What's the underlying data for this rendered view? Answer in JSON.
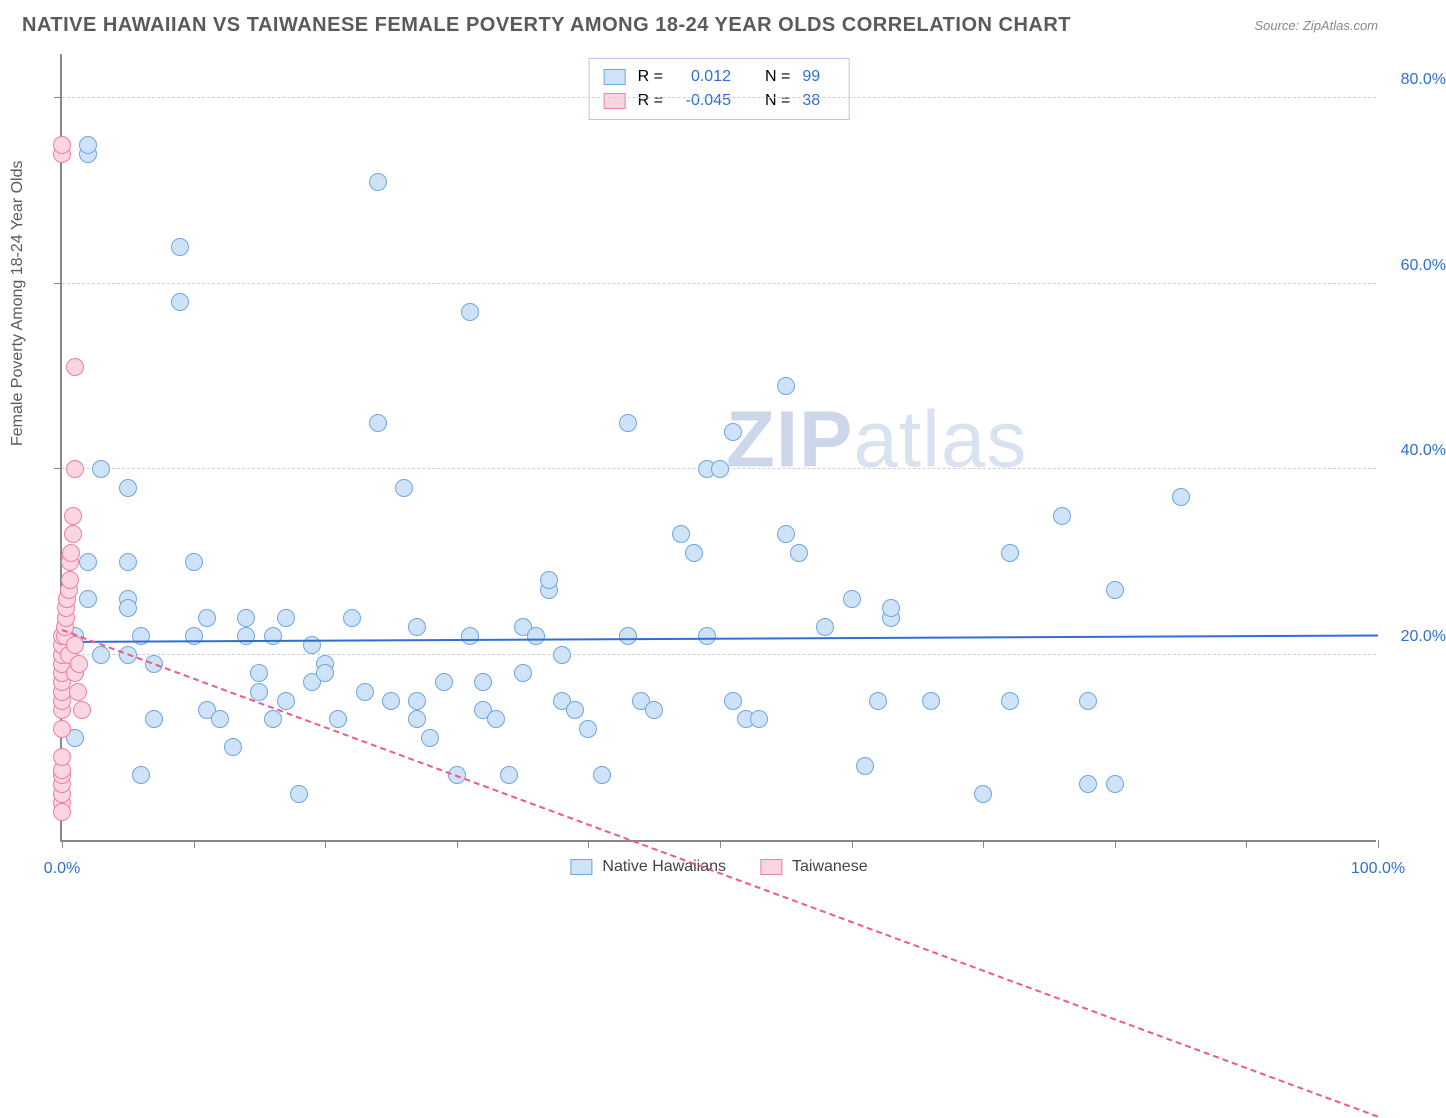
{
  "title": "NATIVE HAWAIIAN VS TAIWANESE FEMALE POVERTY AMONG 18-24 YEAR OLDS CORRELATION CHART",
  "source": "Source: ZipAtlas.com",
  "watermark_a": "ZIP",
  "watermark_b": "atlas",
  "y_axis_title": "Female Poverty Among 18-24 Year Olds",
  "chart": {
    "type": "scatter",
    "xlim": [
      0,
      100
    ],
    "ylim": [
      0,
      85
    ],
    "x_ticks_minor": [
      0,
      10,
      20,
      30,
      40,
      50,
      60,
      70,
      80,
      90,
      100
    ],
    "x_labels": [
      {
        "v": 0,
        "t": "0.0%"
      },
      {
        "v": 100,
        "t": "100.0%"
      }
    ],
    "y_gridlines": [
      20,
      40,
      60,
      80
    ],
    "y_labels": [
      {
        "v": 20,
        "t": "20.0%"
      },
      {
        "v": 40,
        "t": "40.0%"
      },
      {
        "v": 60,
        "t": "60.0%"
      },
      {
        "v": 80,
        "t": "80.0%"
      }
    ],
    "background_color": "#ffffff",
    "grid_color": "#cfcfcf",
    "axis_color": "#888888",
    "point_radius": 9,
    "point_border": 1.5,
    "series": [
      {
        "name": "Native Hawaiians",
        "fill": "#cfe3f8",
        "stroke": "#6fa6e0",
        "r_label": "R =",
        "r_value": "0.012",
        "n_label": "N =",
        "n_value": "99",
        "trend": {
          "color": "#2e6fd6",
          "dash": false,
          "y1": 21.2,
          "y2": 21.9
        },
        "points": [
          [
            1,
            11
          ],
          [
            1,
            22
          ],
          [
            2,
            26
          ],
          [
            2,
            30
          ],
          [
            3,
            20
          ],
          [
            3,
            40
          ],
          [
            2,
            74
          ],
          [
            2,
            75
          ],
          [
            5,
            38
          ],
          [
            5,
            30
          ],
          [
            5,
            26
          ],
          [
            5,
            25
          ],
          [
            6,
            22
          ],
          [
            6,
            7
          ],
          [
            7,
            19
          ],
          [
            7,
            13
          ],
          [
            9,
            58
          ],
          [
            9,
            64
          ],
          [
            10,
            30
          ],
          [
            10,
            22
          ],
          [
            11,
            14
          ],
          [
            11,
            24
          ],
          [
            12,
            13
          ],
          [
            13,
            10
          ],
          [
            14,
            24
          ],
          [
            14,
            22
          ],
          [
            15,
            16
          ],
          [
            15,
            18
          ],
          [
            16,
            13
          ],
          [
            16,
            22
          ],
          [
            17,
            24
          ],
          [
            17,
            15
          ],
          [
            18,
            5
          ],
          [
            19,
            17
          ],
          [
            19,
            21
          ],
          [
            20,
            19
          ],
          [
            20,
            18
          ],
          [
            21,
            13
          ],
          [
            22,
            24
          ],
          [
            23,
            16
          ],
          [
            24,
            71
          ],
          [
            24,
            45
          ],
          [
            25,
            15
          ],
          [
            26,
            38
          ],
          [
            27,
            15
          ],
          [
            27,
            13
          ],
          [
            27,
            23
          ],
          [
            28,
            11
          ],
          [
            29,
            17
          ],
          [
            30,
            7
          ],
          [
            31,
            57
          ],
          [
            31,
            22
          ],
          [
            32,
            17
          ],
          [
            32,
            14
          ],
          [
            33,
            13
          ],
          [
            34,
            7
          ],
          [
            35,
            18
          ],
          [
            35,
            23
          ],
          [
            36,
            22
          ],
          [
            37,
            27
          ],
          [
            37,
            28
          ],
          [
            38,
            20
          ],
          [
            38,
            15
          ],
          [
            39,
            14
          ],
          [
            40,
            12
          ],
          [
            41,
            7
          ],
          [
            43,
            45
          ],
          [
            43,
            22
          ],
          [
            44,
            15
          ],
          [
            45,
            14
          ],
          [
            47,
            33
          ],
          [
            48,
            31
          ],
          [
            49,
            22
          ],
          [
            49,
            40
          ],
          [
            50,
            40
          ],
          [
            51,
            44
          ],
          [
            51,
            15
          ],
          [
            52,
            13
          ],
          [
            53,
            13
          ],
          [
            55,
            49
          ],
          [
            55,
            33
          ],
          [
            56,
            31
          ],
          [
            58,
            23
          ],
          [
            60,
            26
          ],
          [
            61,
            8
          ],
          [
            62,
            15
          ],
          [
            63,
            24
          ],
          [
            63,
            25
          ],
          [
            66,
            15
          ],
          [
            70,
            5
          ],
          [
            72,
            31
          ],
          [
            76,
            35
          ],
          [
            78,
            15
          ],
          [
            80,
            27
          ],
          [
            85,
            37
          ],
          [
            80,
            6
          ],
          [
            72,
            15
          ],
          [
            78,
            6
          ],
          [
            5,
            20
          ]
        ]
      },
      {
        "name": "Taiwanese",
        "fill": "#fbd6e0",
        "stroke": "#ec7fa2",
        "r_label": "R =",
        "r_value": "-0.045",
        "n_label": "N =",
        "n_value": "38",
        "trend": {
          "color": "#ef5a87",
          "dash": true,
          "y1": 22.5,
          "y2": -30
        },
        "points": [
          [
            0,
            4
          ],
          [
            0,
            5
          ],
          [
            0,
            6
          ],
          [
            0,
            7
          ],
          [
            0,
            7.5
          ],
          [
            0,
            9
          ],
          [
            0,
            12
          ],
          [
            0,
            14
          ],
          [
            0,
            15
          ],
          [
            0,
            16
          ],
          [
            0,
            17
          ],
          [
            0,
            18
          ],
          [
            0,
            19
          ],
          [
            0,
            20
          ],
          [
            0,
            21
          ],
          [
            0,
            22
          ],
          [
            0.2,
            22
          ],
          [
            0.2,
            23
          ],
          [
            0.3,
            24
          ],
          [
            0.3,
            25
          ],
          [
            0.4,
            26
          ],
          [
            0.5,
            20
          ],
          [
            0.5,
            27
          ],
          [
            0.6,
            28
          ],
          [
            0.6,
            30
          ],
          [
            0.7,
            31
          ],
          [
            0.8,
            33
          ],
          [
            0.8,
            35
          ],
          [
            1,
            18
          ],
          [
            1,
            21
          ],
          [
            1,
            40
          ],
          [
            1,
            51
          ],
          [
            1.2,
            16
          ],
          [
            1.3,
            19
          ],
          [
            1.5,
            14
          ],
          [
            0,
            74
          ],
          [
            0,
            75
          ],
          [
            0,
            3
          ]
        ]
      }
    ]
  },
  "bottom_legend": [
    {
      "swatch_fill": "#cfe3f8",
      "swatch_stroke": "#6fa6e0",
      "label": "Native Hawaiians"
    },
    {
      "swatch_fill": "#fbd6e0",
      "swatch_stroke": "#ec7fa2",
      "label": "Taiwanese"
    }
  ]
}
